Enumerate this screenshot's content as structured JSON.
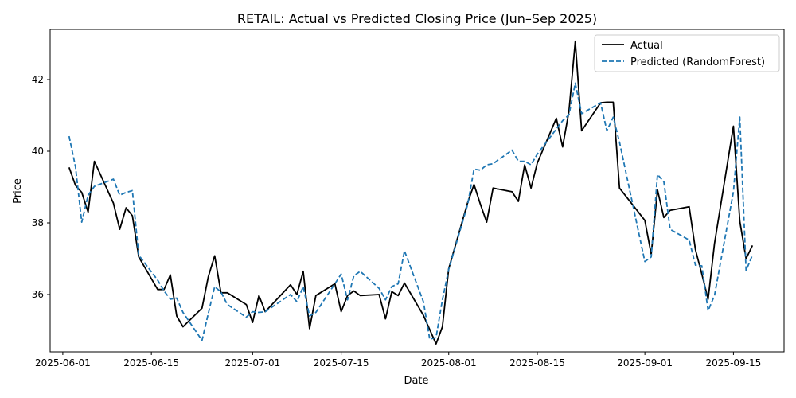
{
  "chart_data": {
    "type": "line",
    "title": "RETAIL: Actual vs Predicted Closing Price (Jun–Sep 2025)",
    "xlabel": "Date",
    "ylabel": "Price",
    "xlim": [
      "2025-05-30",
      "2025-09-23"
    ],
    "ylim": [
      34.4,
      43.4
    ],
    "x_ticks": [
      "2025-06-01",
      "2025-06-15",
      "2025-07-01",
      "2025-07-15",
      "2025-08-01",
      "2025-08-15",
      "2025-09-01",
      "2025-09-15"
    ],
    "y_ticks": [
      36,
      38,
      40,
      42
    ],
    "grid": false,
    "legend_position": "top-right",
    "x": [
      "2025-06-02",
      "2025-06-03",
      "2025-06-04",
      "2025-06-05",
      "2025-06-06",
      "2025-06-09",
      "2025-06-10",
      "2025-06-11",
      "2025-06-12",
      "2025-06-13",
      "2025-06-16",
      "2025-06-17",
      "2025-06-18",
      "2025-06-19",
      "2025-06-20",
      "2025-06-23",
      "2025-06-24",
      "2025-06-25",
      "2025-06-26",
      "2025-06-27",
      "2025-06-30",
      "2025-07-01",
      "2025-07-02",
      "2025-07-03",
      "2025-07-07",
      "2025-07-08",
      "2025-07-09",
      "2025-07-10",
      "2025-07-11",
      "2025-07-14",
      "2025-07-15",
      "2025-07-16",
      "2025-07-17",
      "2025-07-18",
      "2025-07-21",
      "2025-07-22",
      "2025-07-23",
      "2025-07-24",
      "2025-07-25",
      "2025-07-28",
      "2025-07-29",
      "2025-07-30",
      "2025-07-31",
      "2025-08-01",
      "2025-08-04",
      "2025-08-05",
      "2025-08-06",
      "2025-08-07",
      "2025-08-08",
      "2025-08-11",
      "2025-08-12",
      "2025-08-13",
      "2025-08-14",
      "2025-08-15",
      "2025-08-18",
      "2025-08-19",
      "2025-08-20",
      "2025-08-21",
      "2025-08-22",
      "2025-08-25",
      "2025-08-26",
      "2025-08-27",
      "2025-08-28",
      "2025-09-01",
      "2025-09-02",
      "2025-09-03",
      "2025-09-04",
      "2025-09-05",
      "2025-09-08",
      "2025-09-09",
      "2025-09-10",
      "2025-09-11",
      "2025-09-12",
      "2025-09-15",
      "2025-09-16",
      "2025-09-17",
      "2025-09-18"
    ],
    "series": [
      {
        "name": "Actual",
        "color": "#000000",
        "dashed": false,
        "values": [
          39.55,
          39.05,
          38.85,
          38.3,
          39.72,
          38.55,
          37.82,
          38.42,
          38.2,
          37.05,
          36.14,
          36.14,
          36.55,
          35.4,
          35.1,
          35.62,
          36.5,
          37.08,
          36.05,
          36.05,
          35.72,
          35.22,
          35.97,
          35.52,
          36.27,
          36.0,
          36.65,
          35.05,
          35.97,
          36.3,
          35.52,
          35.97,
          36.1,
          35.97,
          36.0,
          35.32,
          36.08,
          35.97,
          36.32,
          35.42,
          35.02,
          34.62,
          35.1,
          36.72,
          38.57,
          39.07,
          38.52,
          38.02,
          38.97,
          38.87,
          38.6,
          39.62,
          38.97,
          39.67,
          40.92,
          40.12,
          41.12,
          43.07,
          40.57,
          41.35,
          41.37,
          41.37,
          38.97,
          38.07,
          37.12,
          38.92,
          38.15,
          38.35,
          38.45,
          37.25,
          36.57,
          35.87,
          37.42,
          40.7,
          38.05,
          37.0,
          37.37
        ]
      },
      {
        "name": "Predicted (RandomForest)",
        "color": "#1f77b4",
        "dashed": true,
        "values": [
          40.42,
          39.57,
          38.02,
          38.77,
          39.02,
          39.22,
          38.77,
          38.85,
          38.9,
          37.1,
          36.4,
          36.1,
          35.87,
          35.9,
          35.5,
          34.72,
          35.47,
          36.22,
          36.07,
          35.72,
          35.37,
          35.52,
          35.5,
          35.52,
          36.0,
          35.8,
          36.22,
          35.4,
          35.5,
          36.3,
          36.57,
          35.85,
          36.52,
          36.65,
          36.17,
          35.85,
          36.22,
          36.3,
          37.22,
          35.8,
          34.75,
          34.8,
          35.85,
          36.7,
          38.52,
          39.5,
          39.47,
          39.62,
          39.65,
          40.03,
          39.72,
          39.72,
          39.62,
          39.92,
          40.62,
          40.85,
          41.02,
          41.9,
          41.05,
          41.35,
          40.57,
          40.95,
          40.25,
          36.92,
          37.05,
          39.35,
          39.15,
          37.82,
          37.52,
          36.82,
          36.8,
          35.55,
          35.97,
          38.87,
          40.95,
          36.67,
          37.1
        ]
      }
    ]
  }
}
